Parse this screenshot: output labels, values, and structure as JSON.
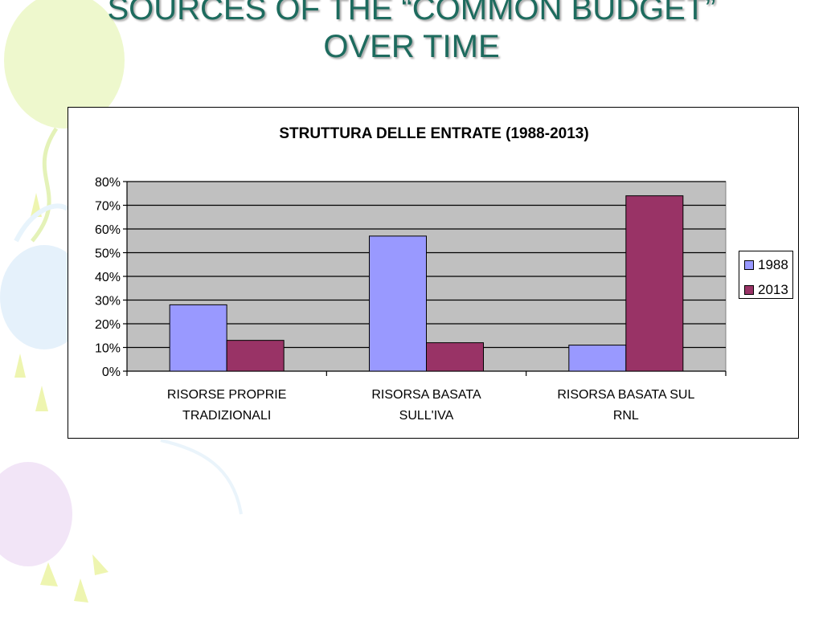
{
  "slide": {
    "title_line1": "SOURCES OF THE “COMMON BUDGET”",
    "title_line2": "OVER TIME"
  },
  "colors": {
    "title": "#1d6b5e",
    "plot_background": "#c0c0c0",
    "series_1988": "#9999ff",
    "series_2013": "#993366"
  },
  "chart_data": {
    "type": "bar",
    "title": "STRUTTURA DELLE ENTRATE (1988-2013)",
    "categories": [
      [
        "RISORSE PROPRIE",
        "TRADIZIONALI"
      ],
      [
        "RISORSA BASATA",
        "SULL'IVA"
      ],
      [
        "RISORSA BASATA SUL",
        "RNL"
      ]
    ],
    "series": [
      {
        "name": "1988",
        "values": [
          28,
          57,
          11
        ]
      },
      {
        "name": "2013",
        "values": [
          13,
          12,
          74
        ]
      }
    ],
    "ylim": [
      0,
      80
    ],
    "yticks": [
      "0%",
      "10%",
      "20%",
      "30%",
      "40%",
      "50%",
      "60%",
      "70%",
      "80%"
    ],
    "grid": true,
    "legend_position": "right"
  }
}
